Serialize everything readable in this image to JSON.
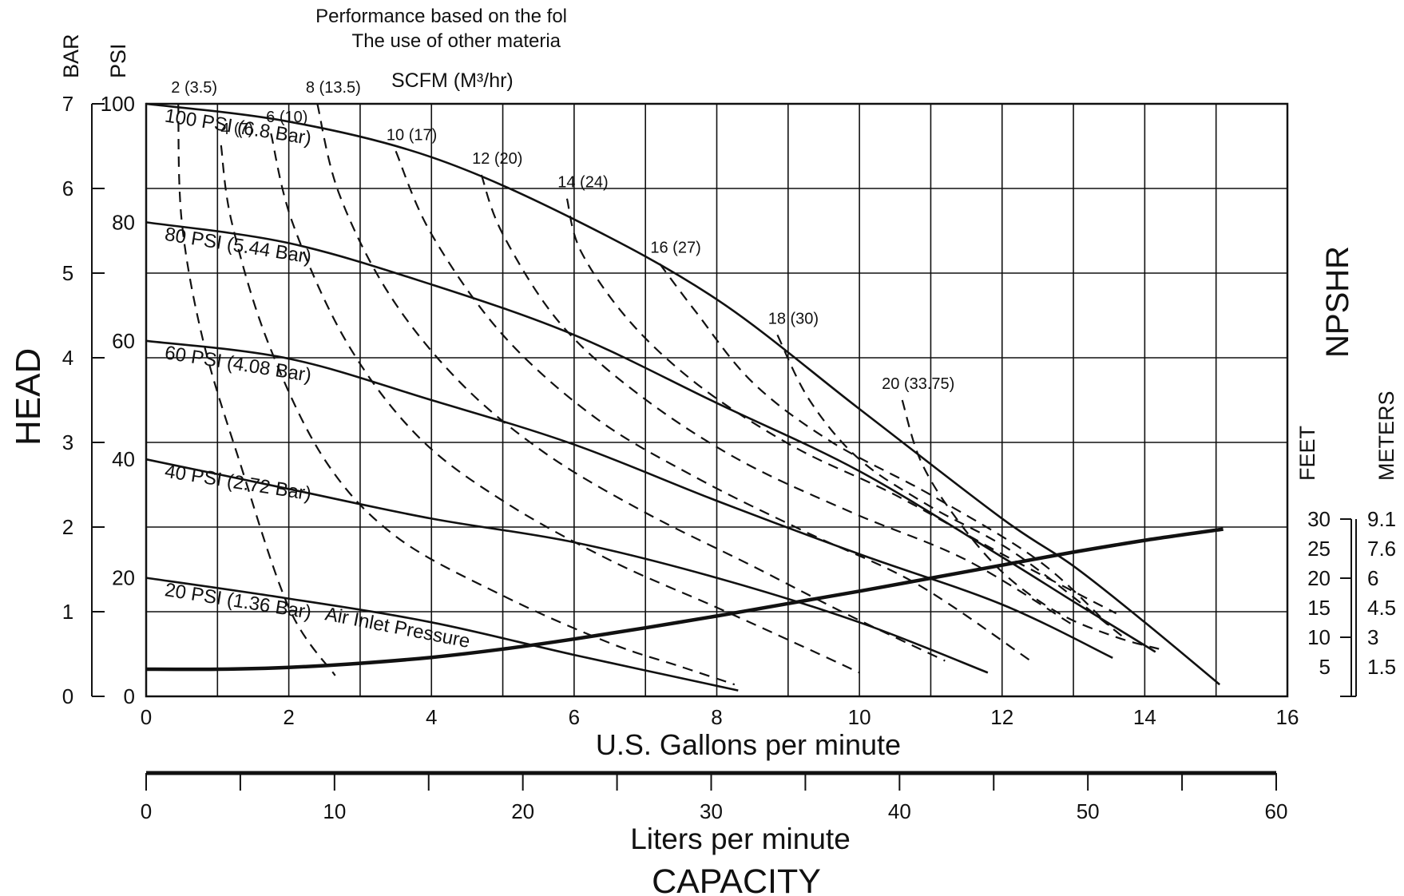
{
  "chart_data": {
    "type": "line",
    "header_lines": [
      "Performance based on the fol",
      "The use of other materia"
    ],
    "scfm_title": "SCFM (M³/hr)",
    "x_label": "U.S. Gallons per minute",
    "x_range": [
      0,
      16
    ],
    "x_ticks": [
      "0",
      "2",
      "4",
      "6",
      "8",
      "10",
      "12",
      "14",
      "16"
    ],
    "y_psi_label": "PSI",
    "y_psi_range": [
      0,
      100
    ],
    "y_psi_ticks": [
      "0",
      "20",
      "40",
      "60",
      "80",
      "100"
    ],
    "y_bar_label": "BAR",
    "y_bar_range": [
      0,
      7
    ],
    "y_bar_ticks": [
      "0",
      "1",
      "2",
      "3",
      "4",
      "5",
      "6",
      "7"
    ],
    "head_label": "HEAD",
    "npshr_label": "NPSHR",
    "feet_label": "FEET",
    "meters_label": "METERS",
    "npshr_feet_ticks": [
      "5",
      "10",
      "15",
      "20",
      "25",
      "30"
    ],
    "npshr_meter_ticks": [
      "1.5",
      "3",
      "4.5",
      "6",
      "7.6",
      "9.1"
    ],
    "lpm_label": "Liters per minute",
    "lpm_range": [
      0,
      60
    ],
    "lpm_ticks": [
      "0",
      "10",
      "20",
      "30",
      "40",
      "50",
      "60"
    ],
    "capacity_label": "CAPACITY",
    "grid": true,
    "pressure_series": [
      {
        "name": "100 PSI (6.8 Bar)",
        "x": [
          0,
          2,
          4,
          6,
          8,
          10,
          12,
          13,
          14,
          15.05
        ],
        "y": [
          100,
          97,
          91,
          80.5,
          67,
          48.5,
          30,
          22,
          12.5,
          2
        ]
      },
      {
        "name": "80 PSI (5.44 Bar)",
        "x": [
          0,
          2,
          4,
          6,
          8,
          10,
          12,
          13,
          14.15
        ],
        "y": [
          80,
          76.5,
          69.5,
          61,
          49.5,
          38,
          23.5,
          16,
          7.5
        ]
      },
      {
        "name": "60 PSI (4.08 Bar)",
        "x": [
          0,
          2,
          4,
          6,
          8,
          10,
          12,
          13.55
        ],
        "y": [
          60,
          57,
          50,
          42.5,
          33,
          24,
          15.5,
          6.5
        ]
      },
      {
        "name": "40 PSI (2.72 Bar)",
        "x": [
          0,
          2,
          4,
          6,
          8,
          10,
          11.8
        ],
        "y": [
          40,
          35,
          30,
          26,
          20,
          12.5,
          4
        ]
      },
      {
        "name": "20 PSI (1.36 Bar)",
        "x": [
          0,
          2,
          4,
          6,
          8.3
        ],
        "y": [
          20,
          16.5,
          12.5,
          7,
          1
        ]
      }
    ],
    "air_inlet_label": "Air Inlet Pressure",
    "air_consumption_series": [
      {
        "name": "2 (3.5)",
        "x": [
          0.45,
          0.5,
          0.8,
          1.3,
          2.0,
          2.65
        ],
        "y": [
          100,
          80,
          60,
          40,
          15,
          3.5
        ]
      },
      {
        "name": "4 (7)",
        "x": [
          1.05,
          1.2,
          1.7,
          2.5,
          3.5,
          5.0,
          6.5,
          7.5,
          8.25
        ],
        "y": [
          93,
          80,
          60,
          40,
          27,
          17,
          9,
          5,
          2
        ]
      },
      {
        "name": "6 (10)",
        "x": [
          1.75,
          2.05,
          2.8,
          3.8,
          5.0,
          6.5,
          8.0,
          9.1,
          10.0
        ],
        "y": [
          95,
          80,
          60,
          44,
          33,
          23,
          15,
          9,
          4
        ]
      },
      {
        "name": "8 (13.5)",
        "x": [
          2.4,
          2.7,
          3.4,
          4.4,
          5.6,
          7.0,
          8.5,
          9.8,
          11.2
        ],
        "y": [
          100,
          85,
          68,
          53,
          41,
          31,
          22,
          14,
          6
        ]
      },
      {
        "name": "10 (17)",
        "x": [
          3.5,
          4.0,
          5.0,
          6.3,
          7.7,
          9.2,
          10.8,
          12.4
        ],
        "y": [
          92,
          78,
          61,
          47,
          37,
          28,
          19,
          6
        ]
      },
      {
        "name": "12 (20)",
        "x": [
          4.7,
          5.0,
          5.8,
          6.9,
          8.3,
          9.9,
          11.5,
          13.0
        ],
        "y": [
          88,
          78,
          63,
          51,
          40,
          31,
          23,
          12
        ]
      },
      {
        "name": "14 (24)",
        "x": [
          5.9,
          6.1,
          6.8,
          7.8,
          9.1,
          10.5,
          12.0,
          13.6
        ],
        "y": [
          84,
          75,
          63,
          52,
          42,
          34,
          24,
          14
        ]
      },
      {
        "name": "16 (27)",
        "x": [
          7.2,
          7.7,
          8.5,
          9.6,
          11.0,
          12.5,
          13.5
        ],
        "y": [
          73,
          65,
          53,
          43,
          34,
          23,
          12
        ]
      },
      {
        "name": "18 (30)",
        "x": [
          8.85,
          9.3,
          10.0,
          11.0,
          12.2,
          13.7
        ],
        "y": [
          61,
          50,
          40,
          32,
          24,
          10
        ]
      },
      {
        "name": "20 (33.75)",
        "x": [
          10.6,
          10.85,
          11.3,
          12.0,
          12.8,
          13.6,
          14.2
        ],
        "y": [
          50,
          40,
          31,
          21,
          14,
          10,
          8
        ]
      }
    ],
    "npshr_series": {
      "name": "NPSHR",
      "x": [
        0,
        1,
        2,
        3,
        4,
        5,
        6,
        7,
        8,
        9,
        10,
        11,
        12,
        13,
        14,
        15.1
      ],
      "y_feet": [
        4.6,
        4.6,
        4.9,
        5.6,
        6.6,
        8.0,
        9.7,
        11.6,
        13.6,
        15.7,
        17.8,
        20.0,
        22.2,
        24.4,
        26.4,
        28.3
      ]
    }
  }
}
